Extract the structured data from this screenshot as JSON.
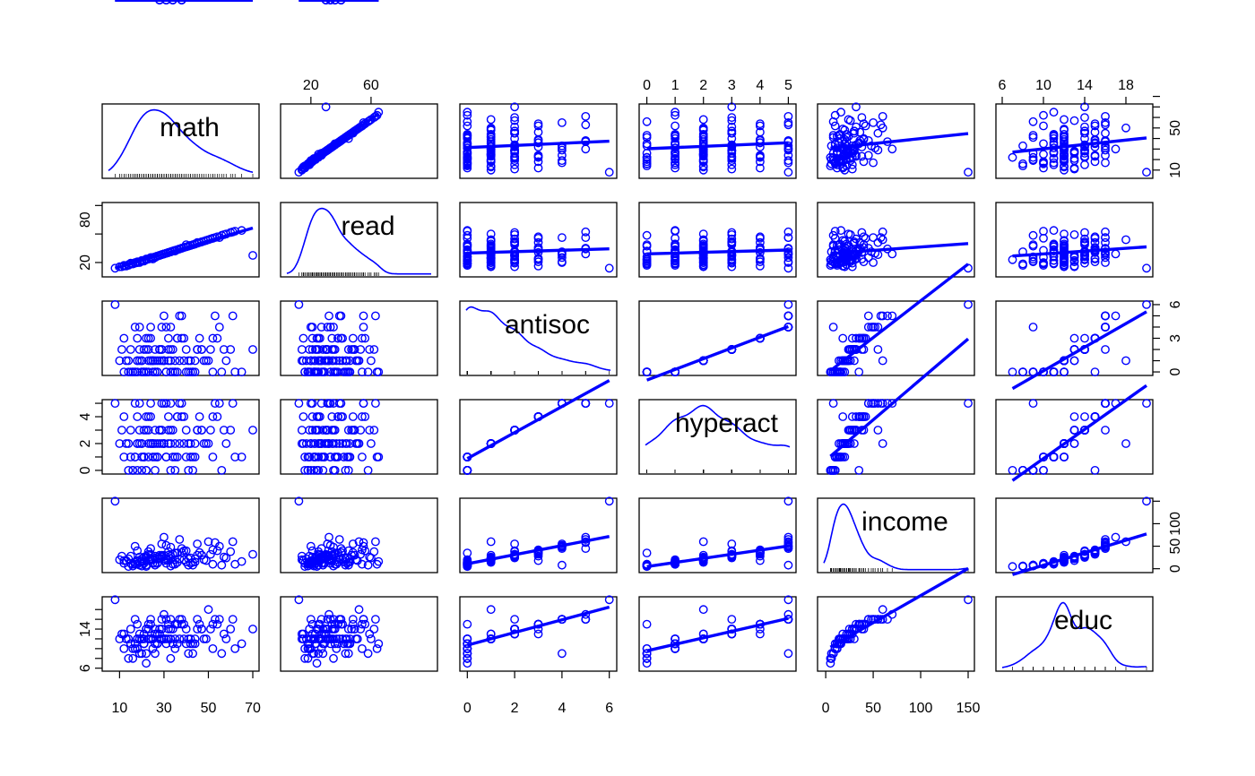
{
  "chart_data": {
    "type": "scatter",
    "variables": [
      "math",
      "read",
      "antisoc",
      "hyperact",
      "income",
      "educ"
    ],
    "color": "#0000ff",
    "ranges": {
      "math": [
        5,
        70
      ],
      "read": [
        4,
        100
      ],
      "antisoc": [
        -0.05,
        6.05
      ],
      "hyperact": [
        -0.05,
        5.05
      ],
      "income": [
        -2,
        150
      ],
      "educ": [
        6,
        20
      ]
    },
    "axes": {
      "top": [
        {
          "col": 1,
          "ticks": [
            20,
            60
          ]
        },
        {
          "col": 3,
          "ticks": [
            0,
            1,
            2,
            3,
            4,
            5
          ]
        },
        {
          "col": 5,
          "ticks": [
            6,
            10,
            14,
            18
          ]
        }
      ],
      "bottom": [
        {
          "col": 0,
          "ticks": [
            10,
            30,
            50,
            70
          ]
        },
        {
          "col": 2,
          "ticks": [
            0,
            2,
            4,
            6
          ]
        },
        {
          "col": 4,
          "ticks": [
            0,
            50,
            100,
            150
          ]
        }
      ],
      "left": [
        {
          "row": 1,
          "ticks": [
            20,
            60,
            100
          ],
          "labels": [
            "20",
            "",
            "80"
          ],
          "label_ticks": [
            20,
            80
          ]
        },
        {
          "row": 3,
          "ticks": [
            0,
            1,
            2,
            3,
            4,
            5
          ],
          "labels": [
            "0",
            "2",
            "4"
          ],
          "label_ticks": [
            0,
            2,
            4
          ]
        },
        {
          "row": 5,
          "ticks": [
            6,
            8,
            10,
            12,
            14,
            16,
            18
          ],
          "labels": [
            "6",
            "14"
          ],
          "label_ticks": [
            6,
            14
          ]
        }
      ],
      "right": [
        {
          "row": 0,
          "ticks": [
            10,
            20,
            30,
            40,
            50,
            60,
            70,
            80
          ],
          "labels": [
            "10",
            "50"
          ],
          "label_ticks": [
            10,
            50
          ]
        },
        {
          "row": 2,
          "ticks": [
            0,
            1,
            2,
            3,
            4,
            5,
            6
          ],
          "labels": [
            "0",
            "3",
            "6"
          ],
          "label_ticks": [
            0,
            3,
            6
          ]
        },
        {
          "row": 4,
          "ticks": [
            0,
            50,
            100,
            150
          ],
          "labels": [
            "0",
            "50",
            "100"
          ],
          "label_ticks": [
            0,
            50,
            100
          ]
        }
      ]
    },
    "data": {
      "math": [
        20,
        25,
        18,
        22,
        30,
        15,
        12,
        28,
        35,
        40,
        19,
        21,
        26,
        33,
        17,
        24,
        29,
        31,
        38,
        45,
        50,
        16,
        23,
        27,
        32,
        36,
        42,
        48,
        55,
        60,
        14,
        19,
        22,
        25,
        28,
        30,
        34,
        37,
        41,
        44,
        47,
        52,
        20,
        18,
        26,
        29,
        33,
        39,
        43,
        46,
        51,
        56,
        13,
        17,
        21,
        24,
        27,
        31,
        35,
        40,
        23,
        26,
        30,
        32,
        36,
        45,
        53,
        58,
        65,
        70,
        8,
        10,
        12,
        15,
        18,
        20,
        22,
        24,
        28,
        32,
        35,
        38,
        42,
        16,
        19,
        23,
        27,
        30,
        34,
        37,
        41,
        49,
        54,
        62,
        11,
        14,
        17,
        21,
        25,
        29,
        33,
        36,
        44,
        52,
        57,
        61,
        20,
        22,
        24,
        26,
        29,
        31,
        33,
        39,
        43,
        47,
        18,
        21,
        23,
        25,
        28,
        31,
        34,
        38
      ],
      "read": [
        22,
        25,
        20,
        24,
        32,
        18,
        15,
        30,
        36,
        45,
        21,
        22,
        27,
        35,
        19,
        26,
        31,
        33,
        40,
        48,
        52,
        18,
        25,
        29,
        34,
        38,
        44,
        50,
        55,
        62,
        16,
        20,
        24,
        27,
        30,
        32,
        36,
        39,
        43,
        46,
        49,
        54,
        22,
        20,
        28,
        31,
        35,
        41,
        45,
        48,
        53,
        58,
        15,
        19,
        23,
        26,
        29,
        33,
        37,
        42,
        25,
        28,
        32,
        34,
        38,
        47,
        55,
        60,
        65,
        30,
        12,
        14,
        16,
        19,
        21,
        23,
        25,
        27,
        30,
        34,
        37,
        40,
        44,
        18,
        21,
        25,
        29,
        32,
        36,
        39,
        43,
        51,
        56,
        64,
        14,
        17,
        20,
        23,
        27,
        31,
        35,
        38,
        46,
        54,
        59,
        63,
        22,
        24,
        26,
        28,
        31,
        33,
        35,
        41,
        45,
        49,
        20,
        23,
        25,
        27,
        30,
        33,
        36,
        40
      ],
      "antisoc": [
        0,
        1,
        0,
        2,
        1,
        0,
        3,
        1,
        0,
        2,
        4,
        0,
        1,
        2,
        0,
        3,
        1,
        0,
        5,
        2,
        1,
        0,
        0,
        1,
        2,
        3,
        0,
        1,
        4,
        2,
        0,
        1,
        3,
        0,
        2,
        1,
        0,
        5,
        1,
        0,
        2,
        3,
        0,
        1,
        0,
        2,
        4,
        1,
        0,
        3,
        2,
        0,
        1,
        0,
        2,
        1,
        0,
        4,
        1,
        0,
        2,
        0,
        1,
        3,
        0,
        2,
        5,
        1,
        0,
        2,
        6,
        1,
        0,
        2,
        3,
        1,
        0,
        4,
        2,
        1,
        0,
        3,
        1,
        0,
        2,
        1,
        0,
        5,
        2,
        1,
        0,
        1,
        3,
        0,
        2,
        1,
        4,
        0,
        1,
        2,
        0,
        3,
        1,
        0,
        2,
        5,
        1,
        0,
        1,
        2,
        4,
        0,
        1,
        3,
        0,
        2,
        1,
        0,
        3,
        1
      ],
      "hyperact": [
        1,
        2,
        0,
        3,
        2,
        1,
        4,
        2,
        0,
        3,
        5,
        1,
        2,
        3,
        1,
        4,
        2,
        1,
        5,
        3,
        2,
        0,
        1,
        2,
        3,
        4,
        1,
        2,
        5,
        3,
        0,
        2,
        4,
        1,
        3,
        2,
        1,
        5,
        2,
        1,
        3,
        4,
        0,
        2,
        1,
        3,
        5,
        2,
        1,
        4,
        3,
        0,
        2,
        1,
        3,
        2,
        1,
        5,
        2,
        1,
        3,
        0,
        2,
        4,
        1,
        3,
        5,
        2,
        1,
        3,
        5,
        2,
        1,
        3,
        4,
        2,
        0,
        5,
        3,
        2,
        1,
        4,
        2,
        0,
        3,
        2,
        1,
        5,
        3,
        2,
        0,
        2,
        4,
        1,
        3,
        2,
        5,
        1,
        2,
        3,
        0,
        4,
        2,
        1,
        3,
        5,
        2,
        0,
        2,
        3,
        5,
        1,
        2,
        4,
        0,
        3,
        2,
        1,
        4,
        2
      ],
      "income": [
        15,
        20,
        10,
        25,
        30,
        12,
        18,
        22,
        35,
        40,
        8,
        16,
        24,
        28,
        14,
        32,
        26,
        20,
        45,
        55,
        60,
        10,
        18,
        22,
        30,
        35,
        12,
        20,
        50,
        38,
        5,
        14,
        28,
        12,
        24,
        18,
        10,
        65,
        22,
        15,
        30,
        42,
        6,
        16,
        12,
        28,
        48,
        20,
        14,
        36,
        32,
        8,
        18,
        10,
        26,
        22,
        12,
        52,
        20,
        15,
        32,
        8,
        22,
        38,
        14,
        30,
        58,
        24,
        16,
        32,
        150,
        20,
        12,
        28,
        40,
        22,
        8,
        45,
        30,
        18,
        10,
        36,
        24,
        6,
        26,
        20,
        12,
        70,
        32,
        22,
        8,
        18,
        40,
        10,
        28,
        22,
        50,
        12,
        20,
        30,
        6,
        35,
        22,
        10,
        26,
        60,
        18,
        5,
        20,
        28,
        55,
        12,
        22,
        40,
        8,
        30,
        18,
        12,
        38,
        20
      ],
      "educ": [
        12,
        12,
        10,
        14,
        12,
        11,
        13,
        12,
        15,
        14,
        9,
        12,
        13,
        14,
        11,
        15,
        12,
        12,
        16,
        16,
        18,
        10,
        12,
        13,
        14,
        15,
        11,
        12,
        16,
        14,
        8,
        12,
        14,
        10,
        13,
        12,
        11,
        16,
        12,
        11,
        14,
        15,
        9,
        12,
        11,
        14,
        16,
        12,
        11,
        15,
        14,
        9,
        12,
        10,
        13,
        12,
        11,
        16,
        12,
        11,
        14,
        9,
        12,
        15,
        11,
        14,
        16,
        12,
        11,
        14,
        20,
        12,
        10,
        14,
        15,
        12,
        9,
        16,
        14,
        12,
        10,
        15,
        12,
        8,
        13,
        12,
        11,
        17,
        14,
        12,
        9,
        12,
        15,
        10,
        13,
        12,
        16,
        11,
        12,
        14,
        8,
        15,
        12,
        10,
        13,
        16,
        12,
        7,
        12,
        14,
        16,
        11,
        12,
        15,
        9,
        14,
        12,
        11,
        15,
        12
      ]
    }
  }
}
